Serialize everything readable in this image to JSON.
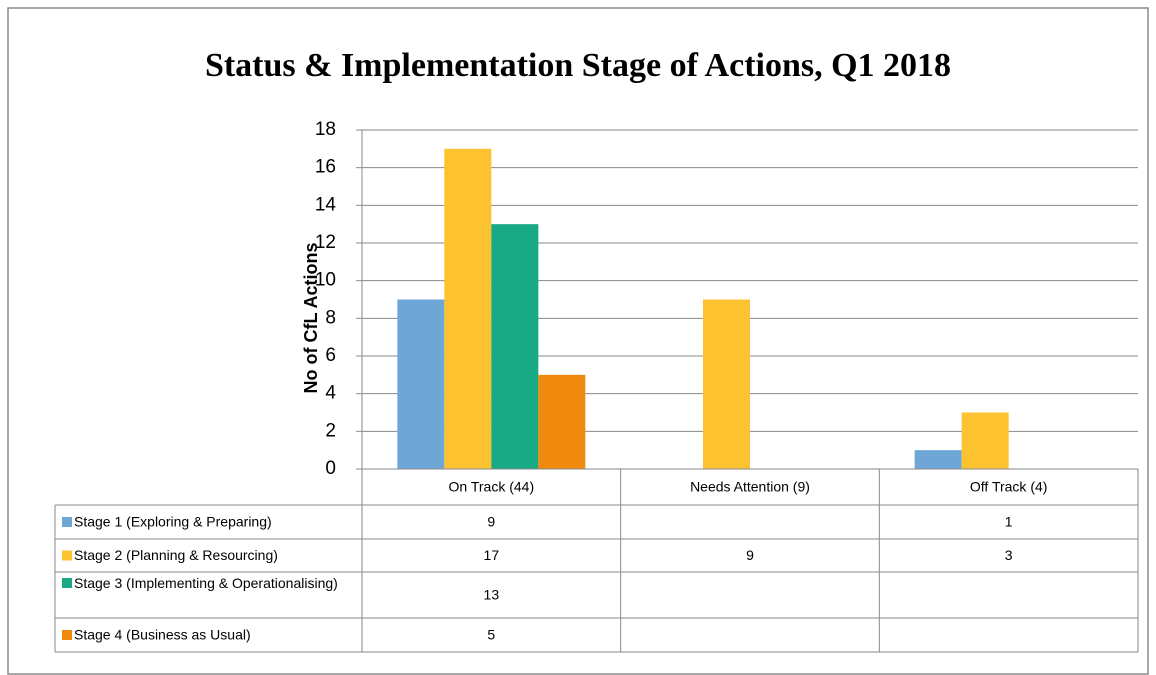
{
  "chart_data": {
    "type": "bar",
    "title": "Status & Implementation Stage of Actions, Q1 2018",
    "y_label": "No of CfL Actions",
    "categories": [
      "On Track (44)",
      "Needs Attention (9)",
      "Off Track (4)"
    ],
    "series": [
      {
        "name": "Stage 1 (Exploring & Preparing)",
        "color": "#6fa6d8",
        "values": [
          9,
          null,
          1
        ]
      },
      {
        "name": "Stage 2 (Planning & Resourcing)",
        "color": "#fcc22f",
        "values": [
          17,
          9,
          3
        ]
      },
      {
        "name": "Stage 3 (Implementing & Operationalising)",
        "color": "#18aa84",
        "values": [
          13,
          null,
          null
        ]
      },
      {
        "name": "Stage 4 (Business as Usual)",
        "color": "#f08a0c",
        "values": [
          5,
          null,
          null
        ]
      }
    ],
    "ylim": [
      0,
      18
    ],
    "yticks": [
      0,
      2,
      4,
      6,
      8,
      10,
      12,
      14,
      16,
      18
    ],
    "grid": true
  }
}
